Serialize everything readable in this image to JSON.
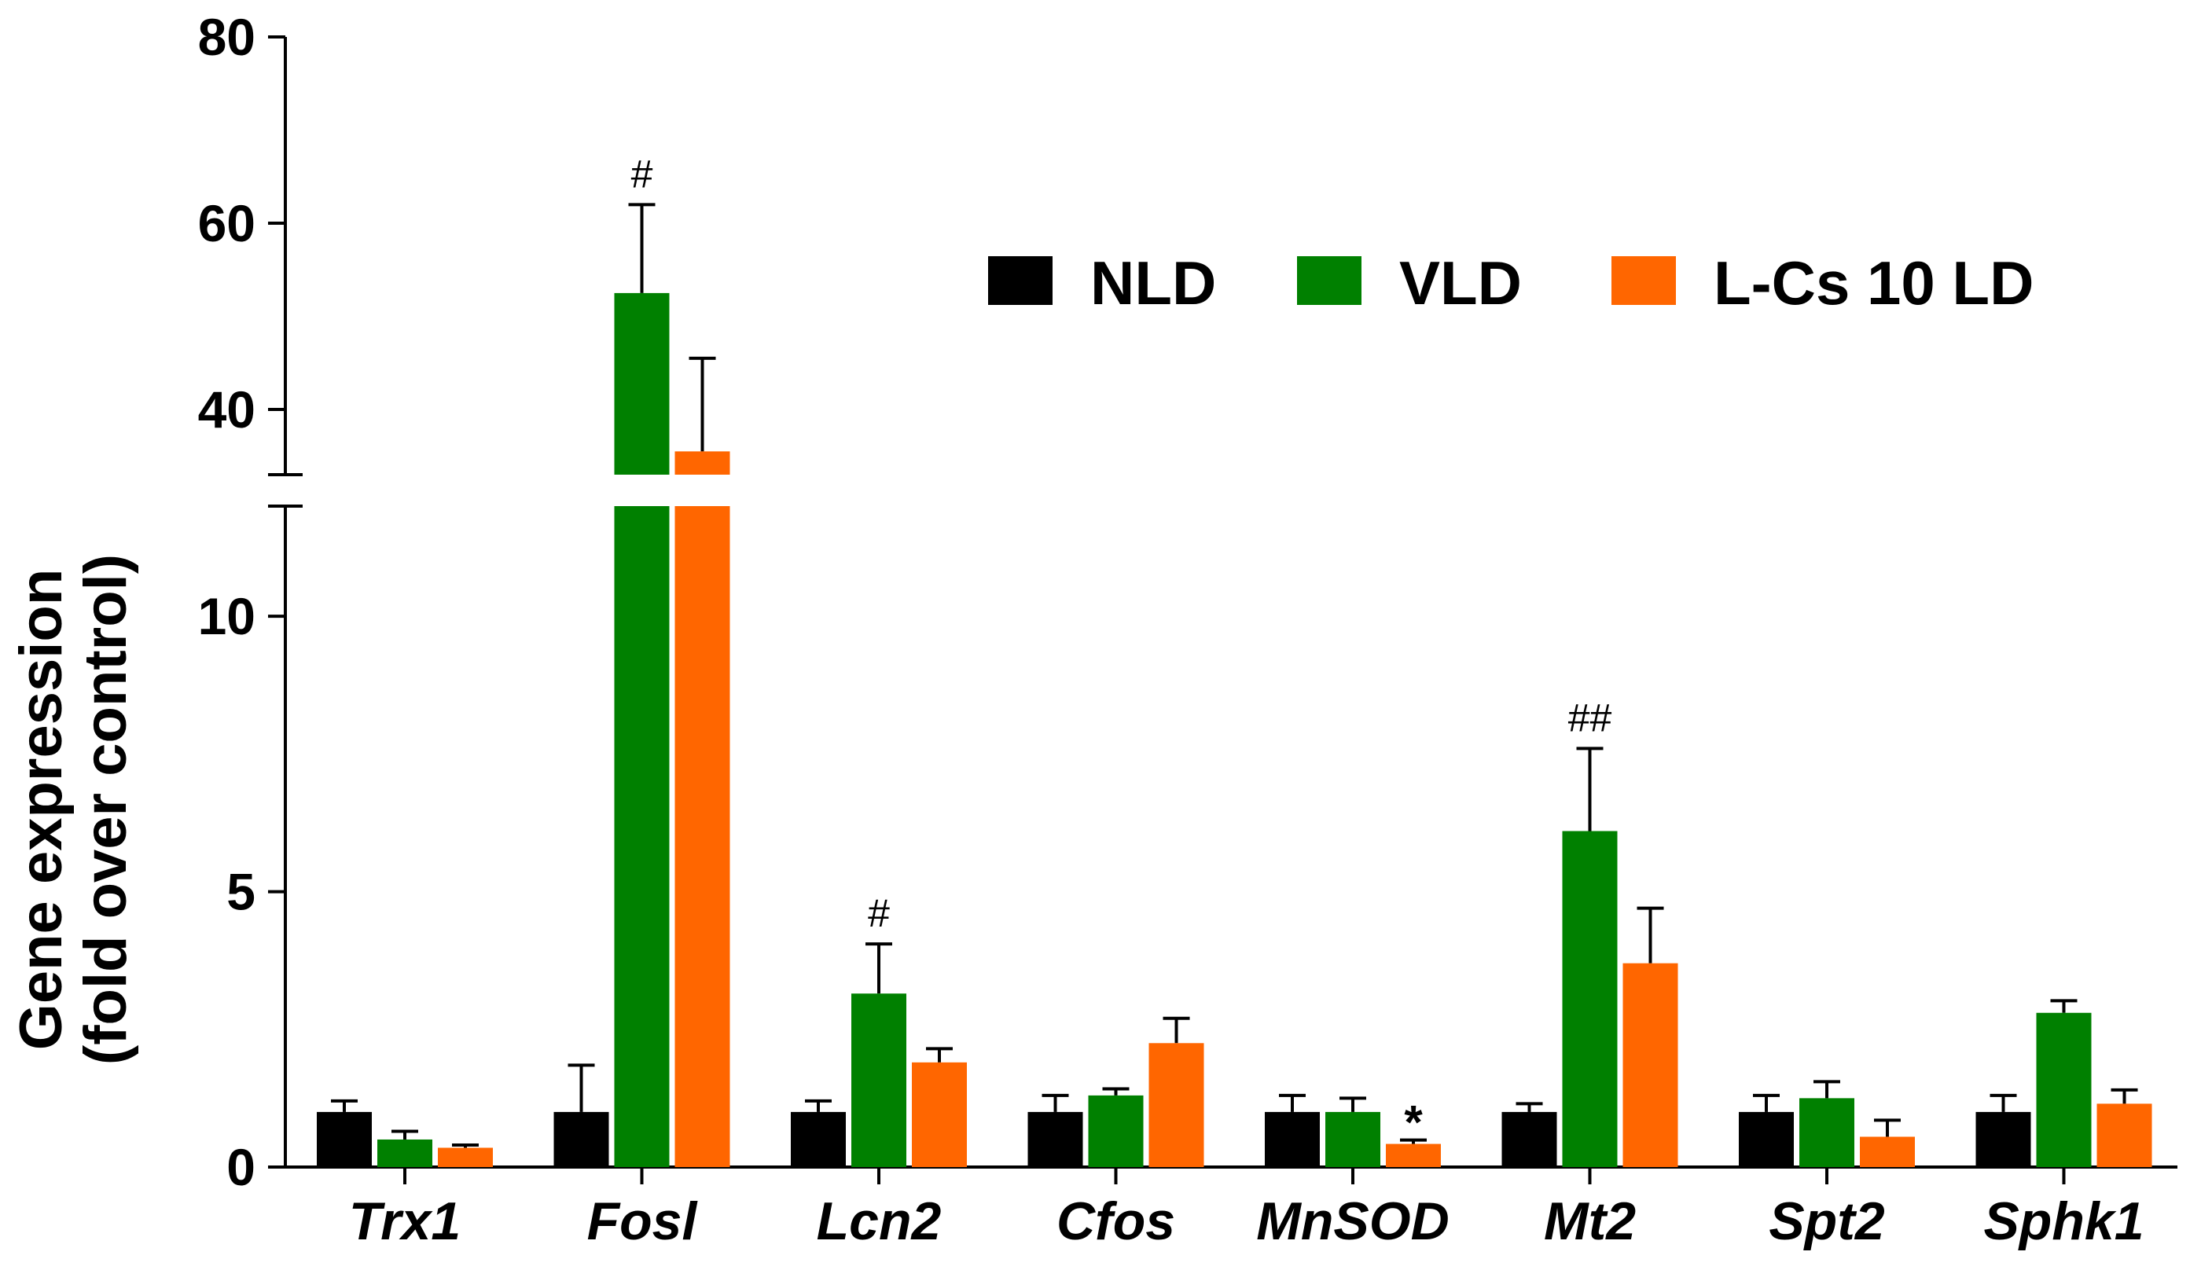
{
  "chart_data": {
    "type": "bar",
    "title": "",
    "xlabel": "",
    "ylabel_line1": "Gene expression",
    "ylabel_line2": "(fold over control)",
    "axis_break": {
      "lower_max": 12,
      "upper_min": 33
    },
    "lower_ticks": [
      {
        "value": 0,
        "label": "0"
      },
      {
        "value": 5,
        "label": "5"
      },
      {
        "value": 10,
        "label": "10"
      }
    ],
    "upper_ticks": [
      {
        "value": 40,
        "label": "40"
      },
      {
        "value": 60,
        "label": "60"
      },
      {
        "value": 80,
        "label": "80"
      }
    ],
    "ylim": [
      0,
      80
    ],
    "legend_position": "top-right",
    "categories": [
      "Trx1",
      "Fosl",
      "Lcn2",
      "Cfos",
      "MnSOD",
      "Mt2",
      "Spt2",
      "Sphk1"
    ],
    "series": [
      {
        "name": "NLD",
        "color": "#000000",
        "values": [
          1.0,
          1.0,
          1.0,
          1.0,
          1.0,
          1.0,
          1.0,
          1.0
        ],
        "errors": [
          0.2,
          0.85,
          0.2,
          0.3,
          0.3,
          0.15,
          0.3,
          0.3
        ]
      },
      {
        "name": "VLD",
        "color": "#008000",
        "values": [
          0.5,
          52.5,
          3.15,
          1.3,
          1.0,
          6.1,
          1.25,
          2.8
        ],
        "errors": [
          0.15,
          9.5,
          0.9,
          0.12,
          0.25,
          1.5,
          0.3,
          0.22
        ]
      },
      {
        "name": "L-Cs 10 LD",
        "color": "#FF6600",
        "values": [
          0.35,
          35.5,
          1.9,
          2.25,
          0.42,
          3.7,
          0.55,
          1.15
        ],
        "errors": [
          0.05,
          10.0,
          0.25,
          0.45,
          0.07,
          1.0,
          0.3,
          0.25
        ]
      }
    ],
    "annotations": [
      {
        "category": "Fosl",
        "series": "VLD",
        "text": "#"
      },
      {
        "category": "Lcn2",
        "series": "VLD",
        "text": "#"
      },
      {
        "category": "MnSOD",
        "series": "L-Cs 10 LD",
        "text": "*"
      },
      {
        "category": "Mt2",
        "series": "VLD",
        "text": "##"
      }
    ]
  }
}
